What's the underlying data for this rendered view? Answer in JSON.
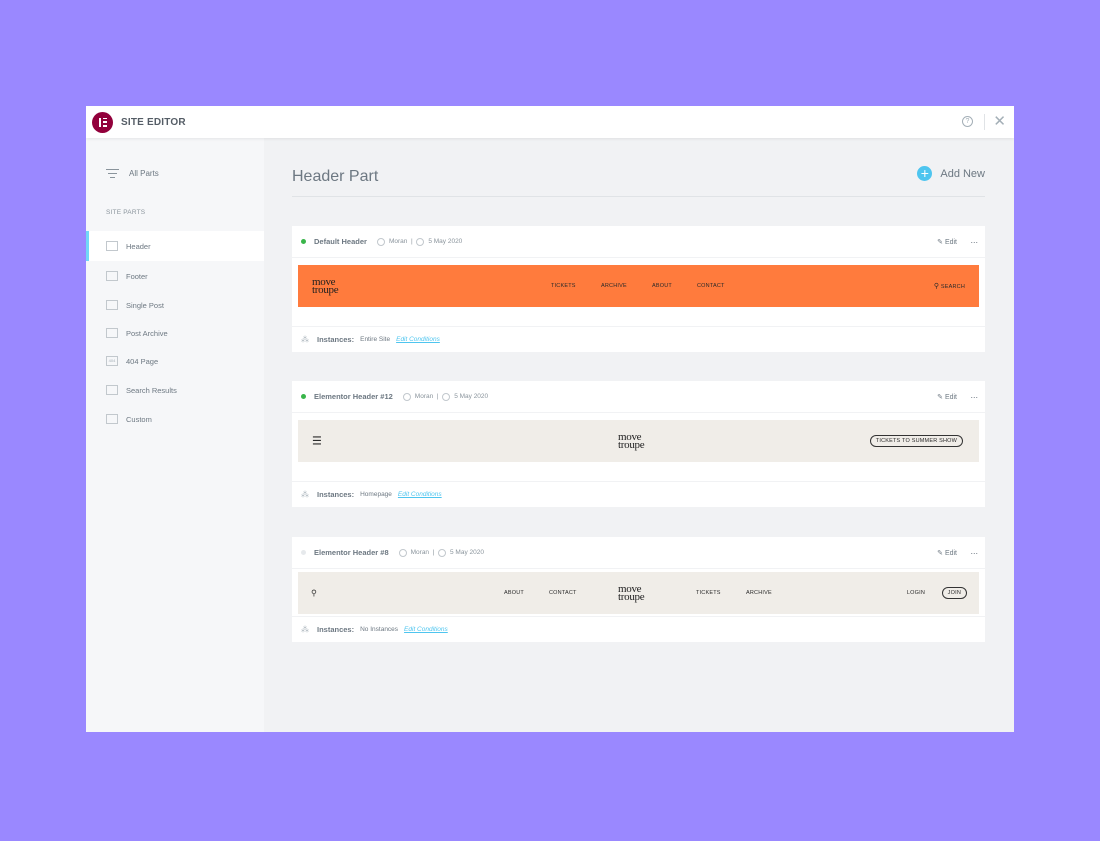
{
  "colors": {
    "background": "#9a88ff",
    "accent": "#71d7f7",
    "brand": "#92003b",
    "active_dot": "#39b54a",
    "inactive_dot": "#e6e9ec",
    "orange_preview": "#ff7b3d",
    "beige_preview": "#f0ede8"
  },
  "titlebar": {
    "title": "SITE EDITOR",
    "help_icon": "help-circle-icon",
    "close_icon": "close-icon"
  },
  "sidebar": {
    "all_parts": "All Parts",
    "section_label": "SITE PARTS",
    "items": [
      {
        "label": "Header",
        "icon": "header-icon",
        "active": true
      },
      {
        "label": "Footer",
        "icon": "footer-icon"
      },
      {
        "label": "Single Post",
        "icon": "single-post-icon"
      },
      {
        "label": "Post Archive",
        "icon": "post-archive-icon"
      },
      {
        "label": "404 Page",
        "icon": "404-icon",
        "icon_text": "404"
      },
      {
        "label": "Search Results",
        "icon": "search-results-icon"
      },
      {
        "label": "Custom",
        "icon": "custom-icon"
      }
    ]
  },
  "main": {
    "title": "Header Part",
    "add_new": "Add New",
    "cards": [
      {
        "name": "Default Header",
        "author": "Moran",
        "separator": "|",
        "date": "5 May 2020",
        "active": true,
        "edit": "Edit",
        "more": "...",
        "instances_label": "Instances:",
        "instances": "Entire Site",
        "edit_conditions": "Edit Conditions",
        "preview": {
          "brand_line1": "move",
          "brand_line2": "troupe",
          "nav": [
            "TICKETS",
            "ARCHIVE",
            "ABOUT",
            "CONTACT"
          ],
          "search": "SEARCH"
        }
      },
      {
        "name": "Elementor Header #12",
        "author": "Moran",
        "separator": "|",
        "date": "5 May 2020",
        "active": true,
        "edit": "Edit",
        "more": "...",
        "instances_label": "Instances:",
        "instances": "Homepage",
        "edit_conditions": "Edit Conditions",
        "preview": {
          "brand_line1": "move",
          "brand_line2": "troupe",
          "cta": "TICKETS TO SUMMER SHOW"
        }
      },
      {
        "name": "Elementor Header #8",
        "author": "Moran",
        "separator": "|",
        "date": "5 May 2020",
        "active": false,
        "edit": "Edit",
        "more": "...",
        "instances_label": "Instances:",
        "instances": "No Instances",
        "edit_conditions": "Edit Conditions",
        "preview": {
          "brand_line1": "move",
          "brand_line2": "troupe",
          "nav_left": [
            "ABOUT",
            "CONTACT"
          ],
          "nav_right": [
            "TICKETS",
            "ARCHIVE"
          ],
          "login": "LOGIN",
          "join": "JOIN"
        }
      }
    ]
  }
}
